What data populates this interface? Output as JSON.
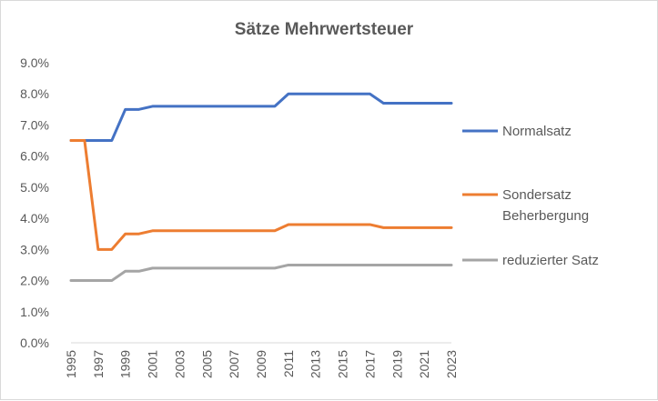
{
  "chart_data": {
    "type": "line",
    "title": "Sätze Mehrwertsteuer",
    "xlabel": "",
    "ylabel": "",
    "x": [
      1995,
      1996,
      1997,
      1998,
      1999,
      2000,
      2001,
      2002,
      2003,
      2004,
      2005,
      2006,
      2007,
      2008,
      2009,
      2010,
      2011,
      2012,
      2013,
      2014,
      2015,
      2016,
      2017,
      2018,
      2019,
      2020,
      2021,
      2022,
      2023
    ],
    "x_tick_labels": [
      "1995",
      "1997",
      "1999",
      "2001",
      "2003",
      "2005",
      "2007",
      "2009",
      "2011",
      "2013",
      "2015",
      "2017",
      "2019",
      "2021",
      "2023"
    ],
    "ylim": [
      0,
      0.09
    ],
    "y_ticks": [
      0,
      0.01,
      0.02,
      0.03,
      0.04,
      0.05,
      0.06,
      0.07,
      0.08,
      0.09
    ],
    "y_tick_labels": [
      "0.0%",
      "1.0%",
      "2.0%",
      "3.0%",
      "4.0%",
      "5.0%",
      "6.0%",
      "7.0%",
      "8.0%",
      "9.0%"
    ],
    "grid": false,
    "legend_position": "right",
    "series": [
      {
        "name": "Normalsatz",
        "legend_lines": [
          "Normalsatz"
        ],
        "color": "#4472c4",
        "values": [
          0.065,
          0.065,
          0.065,
          0.065,
          0.075,
          0.075,
          0.076,
          0.076,
          0.076,
          0.076,
          0.076,
          0.076,
          0.076,
          0.076,
          0.076,
          0.076,
          0.08,
          0.08,
          0.08,
          0.08,
          0.08,
          0.08,
          0.08,
          0.077,
          0.077,
          0.077,
          0.077,
          0.077,
          0.077
        ]
      },
      {
        "name": "Sondersatz Beherbergung",
        "legend_lines": [
          "Sondersatz",
          "Beherbergung"
        ],
        "color": "#ed7d31",
        "values": [
          0.065,
          0.065,
          0.03,
          0.03,
          0.035,
          0.035,
          0.036,
          0.036,
          0.036,
          0.036,
          0.036,
          0.036,
          0.036,
          0.036,
          0.036,
          0.036,
          0.038,
          0.038,
          0.038,
          0.038,
          0.038,
          0.038,
          0.038,
          0.037,
          0.037,
          0.037,
          0.037,
          0.037,
          0.037
        ]
      },
      {
        "name": "reduzierter Satz",
        "legend_lines": [
          "reduzierter Satz"
        ],
        "color": "#a5a5a5",
        "values": [
          0.02,
          0.02,
          0.02,
          0.02,
          0.023,
          0.023,
          0.024,
          0.024,
          0.024,
          0.024,
          0.024,
          0.024,
          0.024,
          0.024,
          0.024,
          0.024,
          0.025,
          0.025,
          0.025,
          0.025,
          0.025,
          0.025,
          0.025,
          0.025,
          0.025,
          0.025,
          0.025,
          0.025,
          0.025
        ]
      }
    ]
  },
  "axis_color": "#d9d9d9",
  "text_color": "#595959"
}
